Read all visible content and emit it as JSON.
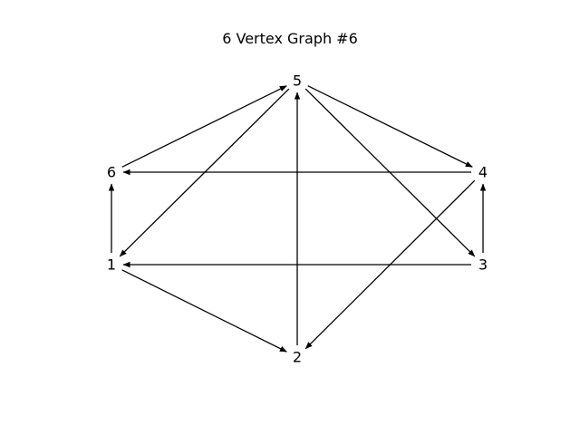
{
  "graph": {
    "title": "6 Vertex Graph #6",
    "edge_color": "#000000",
    "directed": true,
    "nodes": [
      {
        "id": "1",
        "label": "1"
      },
      {
        "id": "2",
        "label": "2"
      },
      {
        "id": "3",
        "label": "3"
      },
      {
        "id": "4",
        "label": "4"
      },
      {
        "id": "5",
        "label": "5"
      },
      {
        "id": "6",
        "label": "6"
      }
    ],
    "edges": [
      {
        "from": "1",
        "to": "6"
      },
      {
        "from": "1",
        "to": "2"
      },
      {
        "from": "2",
        "to": "5"
      },
      {
        "from": "3",
        "to": "4"
      },
      {
        "from": "3",
        "to": "1"
      },
      {
        "from": "4",
        "to": "6"
      },
      {
        "from": "4",
        "to": "2"
      },
      {
        "from": "5",
        "to": "1"
      },
      {
        "from": "5",
        "to": "3"
      },
      {
        "from": "5",
        "to": "4"
      },
      {
        "from": "6",
        "to": "5"
      }
    ]
  }
}
